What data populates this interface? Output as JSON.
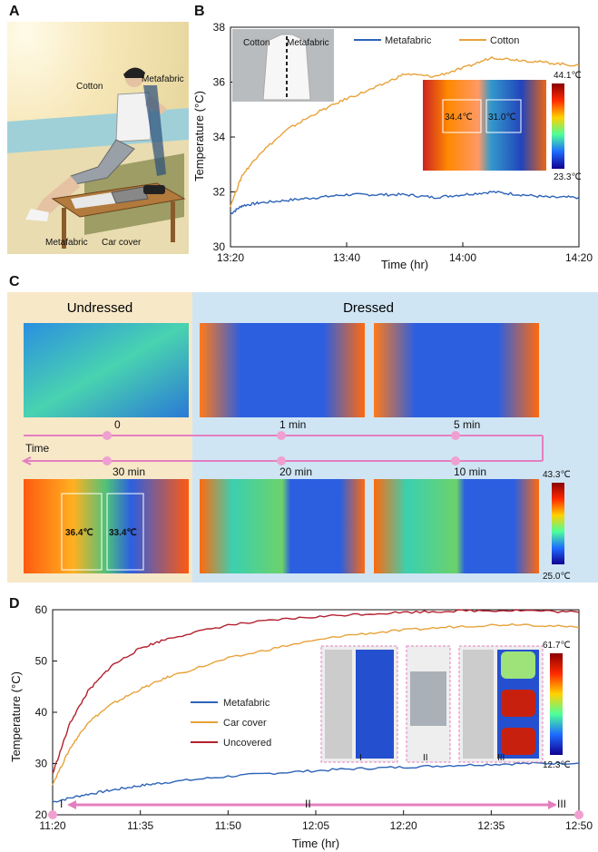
{
  "panels": {
    "a": "A",
    "b": "B",
    "c": "C",
    "d": "D"
  },
  "panel_a": {
    "labels": [
      "Cotton",
      "Metafabric",
      "Metafabric",
      "Car cover"
    ]
  },
  "panel_b": {
    "photo_labels": [
      "Cotton",
      "Metafabric"
    ],
    "thermal": {
      "max": "44.1℃",
      "min": "23.3℃",
      "left": "34.4℃",
      "right": "31.0℃"
    }
  },
  "panel_c": {
    "undressed": "Undressed",
    "dressed": "Dressed",
    "time_label": "Time",
    "times": [
      "0",
      "1 min",
      "5 min",
      "30 min",
      "20 min",
      "10 min"
    ],
    "scale": {
      "max": "43.3℃",
      "min": "25.0℃"
    },
    "readings": [
      "36.4℃",
      "33.4℃"
    ]
  },
  "panel_d": {
    "scale": {
      "max": "61.7℃",
      "min": "12.3℃"
    },
    "insets": [
      "I",
      "II",
      "III"
    ],
    "markers": [
      "I",
      "II",
      "III"
    ]
  },
  "chart_data": [
    {
      "type": "line",
      "xlabel": "Time (hr)",
      "ylabel": "Temperature (°C)",
      "xticks": [
        "13:20",
        "13:40",
        "14:00",
        "14:20"
      ],
      "yticks": [
        "30",
        "32",
        "34",
        "36",
        "38"
      ],
      "xlim": [
        0,
        60
      ],
      "ylim": [
        30,
        38
      ],
      "legend_position": "top-right",
      "series": [
        {
          "name": "Metafabric",
          "color": "#2d63b8",
          "x": [
            0,
            2,
            5,
            10,
            15,
            20,
            25,
            30,
            35,
            40,
            45,
            50,
            55,
            60
          ],
          "y": [
            31.2,
            31.5,
            31.6,
            31.7,
            31.8,
            31.9,
            31.9,
            31.9,
            31.8,
            31.9,
            32.0,
            31.9,
            31.8,
            31.8
          ]
        },
        {
          "name": "Cotton",
          "color": "#e8a23a",
          "x": [
            0,
            2,
            5,
            10,
            15,
            20,
            25,
            30,
            35,
            40,
            45,
            50,
            55,
            60
          ],
          "y": [
            31.5,
            32.6,
            33.4,
            34.3,
            34.9,
            35.4,
            35.8,
            36.3,
            36.2,
            36.5,
            36.9,
            36.8,
            36.7,
            36.6
          ]
        }
      ]
    },
    {
      "type": "line",
      "xlabel": "Time (hr)",
      "ylabel": "Temperature (°C)",
      "xticks": [
        "11:20",
        "11:35",
        "11:50",
        "12:05",
        "12:20",
        "12:35",
        "12:50"
      ],
      "yticks": [
        "20",
        "30",
        "40",
        "50",
        "60"
      ],
      "xlim": [
        0,
        90
      ],
      "ylim": [
        20,
        60
      ],
      "legend_position": "center-left",
      "series": [
        {
          "name": "Metafabric",
          "color": "#2d63b8",
          "x": [
            0,
            5,
            10,
            15,
            20,
            30,
            40,
            50,
            60,
            70,
            80,
            90
          ],
          "y": [
            22.5,
            23.8,
            24.8,
            25.7,
            26.4,
            27.5,
            28.3,
            28.9,
            29.3,
            29.7,
            30.0,
            30.1
          ]
        },
        {
          "name": "Car cover",
          "color": "#e8a23a",
          "x": [
            0,
            3,
            6,
            10,
            15,
            20,
            30,
            40,
            50,
            60,
            70,
            80,
            90
          ],
          "y": [
            26,
            33,
            38,
            41.5,
            44.5,
            47,
            50.5,
            53,
            55,
            56,
            56.8,
            57.2,
            56.5
          ]
        },
        {
          "name": "Uncovered",
          "color": "#b3202e",
          "x": [
            0,
            3,
            6,
            10,
            15,
            20,
            30,
            40,
            50,
            60,
            70,
            80,
            90
          ],
          "y": [
            28,
            38,
            44,
            49,
            52.5,
            54.5,
            57,
            58.2,
            59,
            59.5,
            59.8,
            59.9,
            59.5
          ]
        }
      ]
    }
  ]
}
